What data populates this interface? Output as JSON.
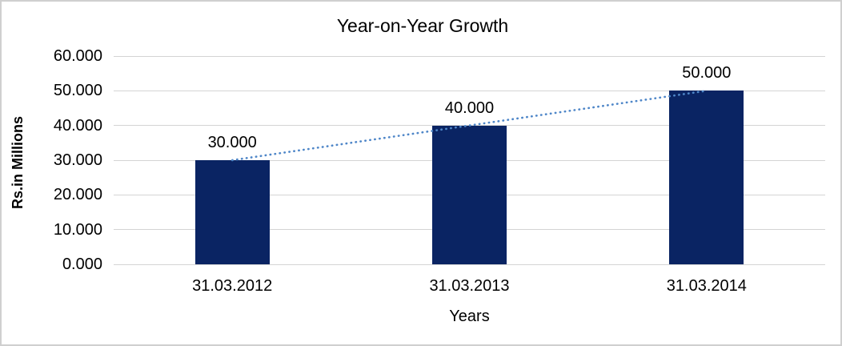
{
  "frame": {
    "background": "#ffffff",
    "border_color": "#cfcfcf"
  },
  "chart_data": {
    "type": "bar",
    "title": "Year-on-Year Growth",
    "xlabel": "Years",
    "ylabel": "Rs.in Millions",
    "categories": [
      "31.03.2012",
      "31.03.2013",
      "31.03.2014"
    ],
    "values": [
      30000,
      40000,
      50000
    ],
    "data_labels": [
      "30.000",
      "40.000",
      "50.000"
    ],
    "ylim": [
      0,
      60000
    ],
    "y_tick_step": 10000,
    "y_tick_labels": [
      "0.000",
      "10.000",
      "20.000",
      "30.000",
      "40.000",
      "50.000",
      "60.000"
    ],
    "grid": true,
    "legend": "none",
    "trendline": {
      "type": "linear",
      "style": "dotted",
      "color": "#4e86c8"
    },
    "colors": {
      "bar": "#0a2463",
      "gridline": "#d4d4d4",
      "text": "#000000"
    }
  }
}
